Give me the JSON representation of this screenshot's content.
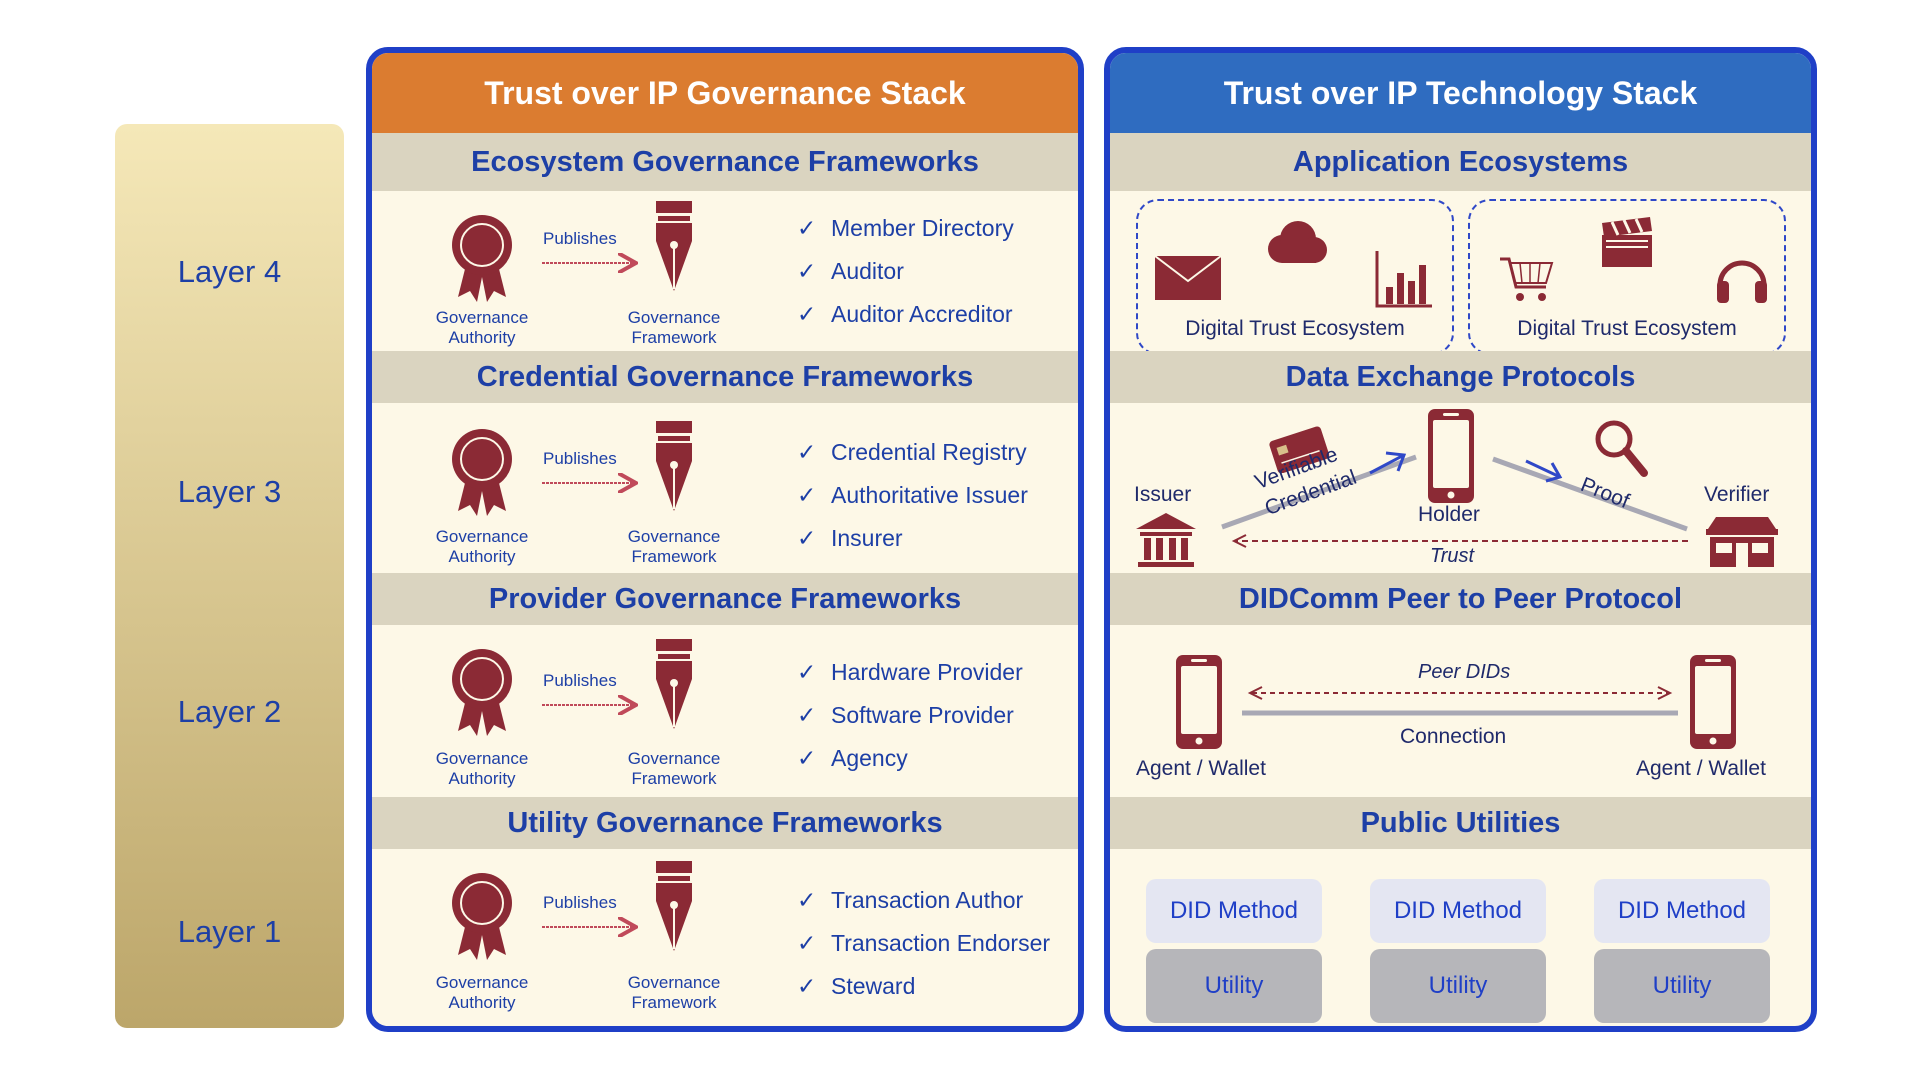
{
  "layers": [
    "Layer 4",
    "Layer 3",
    "Layer 2",
    "Layer 1"
  ],
  "governance": {
    "title": "Trust over IP Governance Stack",
    "publishes_label": "Publishes",
    "authority_label_1": "Governance",
    "authority_label_2": "Authority",
    "framework_label_1": "Governance",
    "framework_label_2": "Framework",
    "check_glyph": "✓",
    "sections": [
      {
        "title": "Ecosystem Governance Frameworks",
        "items": [
          "Member Directory",
          "Auditor",
          "Auditor Accreditor"
        ]
      },
      {
        "title": "Credential Governance Frameworks",
        "items": [
          "Credential Registry",
          "Authoritative Issuer",
          "Insurer"
        ]
      },
      {
        "title": "Provider Governance Frameworks",
        "items": [
          "Hardware Provider",
          "Software Provider",
          "Agency"
        ]
      },
      {
        "title": "Utility Governance Frameworks",
        "items": [
          "Transaction Author",
          "Transaction Endorser",
          "Steward"
        ]
      }
    ]
  },
  "technology": {
    "title": "Trust over IP Technology Stack",
    "application": {
      "title": "Application Ecosystems",
      "ecosystem_label": "Digital Trust Ecosystem"
    },
    "data_exchange": {
      "title": "Data Exchange Protocols",
      "issuer": "Issuer",
      "holder": "Holder",
      "verifier": "Verifier",
      "vc_1": "Verifiable",
      "vc_2": "Credential",
      "proof": "Proof",
      "trust": "Trust"
    },
    "didcomm": {
      "title": "DIDComm Peer to Peer Protocol",
      "peer_dids": "Peer DIDs",
      "connection": "Connection",
      "agent": "Agent / Wallet"
    },
    "public_utilities": {
      "title": "Public Utilities",
      "did_method": "DID Method",
      "utility": "Utility"
    }
  },
  "colors": {
    "icon": "#8b2a35",
    "text_blue": "#1d3fa6",
    "border": "#1f3fc7",
    "gov_header": "#db7c30",
    "tech_header": "#2f6cc0"
  }
}
